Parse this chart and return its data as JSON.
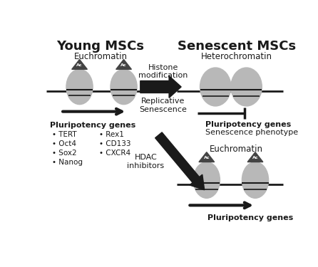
{
  "title_left": "Young MSCs",
  "title_right": "Senescent MSCs",
  "label_euchromatin_top": "Euchromatin",
  "label_heterochromatin": "Heterochromatin",
  "label_euchromatin_bottom": "Euchromatin",
  "label_histone": "Histone\nmodification",
  "label_replicative": "Replicative\nSenescence",
  "label_hdac": "HDAC\ninhibitors",
  "label_pluripotency_left": "Pluripotency genes",
  "label_pluripotency_right_top": "Pluripotency genes",
  "label_senescence_phenotype": "Senescence phenotype",
  "label_pluripotency_right_bottom": "Pluripotency genes",
  "bullet_col1": [
    "• TERT",
    "• Oct4",
    "• Sox2",
    "• Nanog"
  ],
  "bullet_col2": [
    "• Rex1",
    "• CD133",
    "• CXCR4"
  ],
  "bg_color": "#ffffff",
  "histone_color": "#b8b8b8",
  "line_color": "#1a1a1a",
  "arrow_fill": "#1a1a1a",
  "text_color": "#1a1a1a",
  "tri_color": "#444444"
}
